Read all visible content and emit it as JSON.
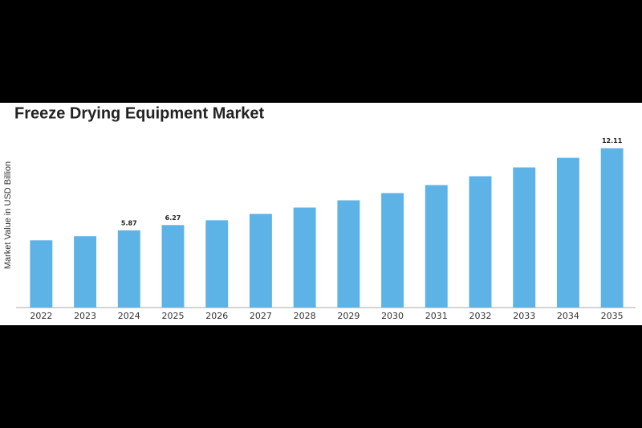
{
  "chart_data": {
    "type": "bar",
    "title": "Freeze Drying Equipment Market",
    "y_label": "Market Value in USD Billion",
    "categories": [
      "2022",
      "2023",
      "2024",
      "2025",
      "2026",
      "2027",
      "2028",
      "2029",
      "2030",
      "2031",
      "2032",
      "2033",
      "2034",
      "2035"
    ],
    "values": [
      5.11,
      5.42,
      5.87,
      6.27,
      6.63,
      7.12,
      7.6,
      8.15,
      8.7,
      9.31,
      9.98,
      10.65,
      11.38,
      12.11
    ],
    "value_labels": [
      null,
      null,
      "5.87",
      "6.27",
      null,
      null,
      null,
      null,
      null,
      null,
      null,
      null,
      null,
      "12.11"
    ],
    "color": "#5db3e6",
    "ylim": [
      0,
      13
    ],
    "grid": false
  }
}
